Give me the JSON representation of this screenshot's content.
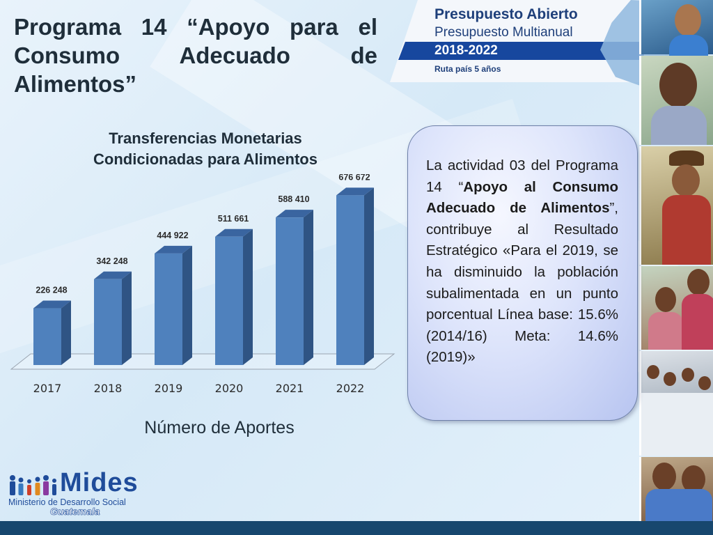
{
  "slide": {
    "title": "Programa 14 “Apoyo para el Consumo Adecuado de Alimentos”"
  },
  "banner": {
    "line1": "Presupuesto Abierto",
    "line2": "Presupuesto Multianual",
    "years": "2018-2022",
    "subtitle": "Ruta país 5 años"
  },
  "chart_data": {
    "type": "bar",
    "title": "Transferencias Monetarias Condicionadas para Alimentos",
    "title_line1": "Transferencias Monetarias",
    "title_line2": "Condicionadas para Alimentos",
    "categories": [
      "2017",
      "2018",
      "2019",
      "2020",
      "2021",
      "2022"
    ],
    "values": [
      226248,
      342248,
      444922,
      511661,
      588410,
      676672
    ],
    "value_labels": [
      "226 248",
      "342 248",
      "444 922",
      "511 661",
      "588 410",
      "676 672"
    ],
    "xlabel": "Número de Aportes",
    "ylabel": "",
    "ylim": [
      0,
      700000
    ],
    "grid": false,
    "legend": "none",
    "style": "3d-columns",
    "colors": {
      "bar_front": "#4f81bd",
      "bar_side": "#2f5484",
      "bar_top": "#3a65a0"
    }
  },
  "info_box": {
    "segments": [
      {
        "text": "La actividad 03 del Programa 14 “",
        "bold": false
      },
      {
        "text": "Apoyo al Consumo Adecuado de Alimentos",
        "bold": true
      },
      {
        "text": "”, contribuye al Resultado Estratégico «Para el 2019, se ha disminuido la población subalimentada en un punto porcentual Línea base: 15.6% (2014/16) Meta: 14.6% (2019)»",
        "bold": false
      }
    ]
  },
  "logo": {
    "name": "Mides",
    "full_name": "Ministerio de Desarrollo Social",
    "country": "Guatemala"
  },
  "colors": {
    "title_text": "#1f2e3a",
    "banner_blue": "#17479e",
    "bottom_band": "#17476e"
  }
}
